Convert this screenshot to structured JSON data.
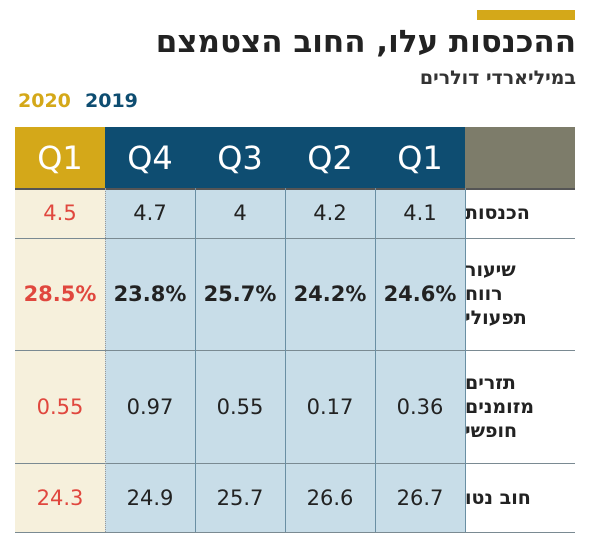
{
  "header": {
    "title": "ההכנסות עלו, החוב הצטמצם",
    "subtitle": "במיליארדי דולרים",
    "legend": [
      {
        "label": "2020",
        "color": "#d4a819"
      },
      {
        "label": "2019",
        "color": "#0e4d71"
      }
    ]
  },
  "colors": {
    "gold": "#d4a819",
    "navy": "#0e4d71",
    "highlight_red": "#e0473e",
    "cell_blue": "#c8dde8",
    "cell_cream": "#f6f0dc",
    "header_gray": "#7d7c6a"
  },
  "chart_data": {
    "type": "table",
    "title": "ההכנסות עלו, החוב הצטמצם",
    "subtitle": "במיליארדי דולרים",
    "columns": [
      {
        "label": "Q1",
        "year": "2020",
        "values": [
          "4.5",
          "28.5%",
          "0.55",
          "24.3"
        ]
      },
      {
        "label": "Q4",
        "year": "2019",
        "values": [
          "4.7",
          "23.8%",
          "0.97",
          "24.9"
        ]
      },
      {
        "label": "Q3",
        "year": "2019",
        "values": [
          "4",
          "25.7%",
          "0.55",
          "25.7"
        ]
      },
      {
        "label": "Q2",
        "year": "2019",
        "values": [
          "4.2",
          "24.2%",
          "0.17",
          "26.6"
        ]
      },
      {
        "label": "Q1",
        "year": "2019",
        "values": [
          "4.1",
          "24.6%",
          "0.36",
          "26.7"
        ]
      }
    ],
    "rows": [
      {
        "label": "הכנסות"
      },
      {
        "label": "שיעור רווח תפעולי",
        "lines": [
          "שיעור",
          "רווח",
          "תפעולי"
        ]
      },
      {
        "label": "תזרים מזומנים חופשי",
        "lines": [
          "תזרים",
          "מזומנים",
          "חופשי"
        ]
      },
      {
        "label": "חוב נטו"
      }
    ],
    "legend_placement": "top-left",
    "grid": true
  }
}
